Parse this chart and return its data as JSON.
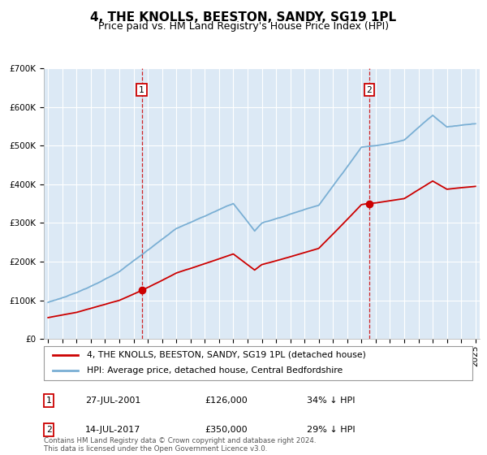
{
  "title": "4, THE KNOLLS, BEESTON, SANDY, SG19 1PL",
  "subtitle": "Price paid vs. HM Land Registry's House Price Index (HPI)",
  "ylim": [
    0,
    700000
  ],
  "yticks": [
    0,
    100000,
    200000,
    300000,
    400000,
    500000,
    600000,
    700000
  ],
  "ytick_labels": [
    "£0",
    "£100K",
    "£200K",
    "£300K",
    "£400K",
    "£500K",
    "£600K",
    "£700K"
  ],
  "xlim": [
    1994.7,
    2025.3
  ],
  "plot_bg_color": "#dce9f5",
  "grid_color": "#ffffff",
  "sale1_x": 2001.57,
  "sale1_y": 126000,
  "sale1_label": "27-JUL-2001",
  "sale1_price": "£126,000",
  "sale1_hpi": "34% ↓ HPI",
  "sale2_x": 2017.54,
  "sale2_y": 350000,
  "sale2_label": "14-JUL-2017",
  "sale2_price": "£350,000",
  "sale2_hpi": "29% ↓ HPI",
  "line1_color": "#cc0000",
  "line2_color": "#7aafd4",
  "legend1_label": "4, THE KNOLLS, BEESTON, SANDY, SG19 1PL (detached house)",
  "legend2_label": "HPI: Average price, detached house, Central Bedfordshire",
  "footer": "Contains HM Land Registry data © Crown copyright and database right 2024.\nThis data is licensed under the Open Government Licence v3.0.",
  "title_fontsize": 11,
  "subtitle_fontsize": 9,
  "axis_fontsize": 7.5
}
